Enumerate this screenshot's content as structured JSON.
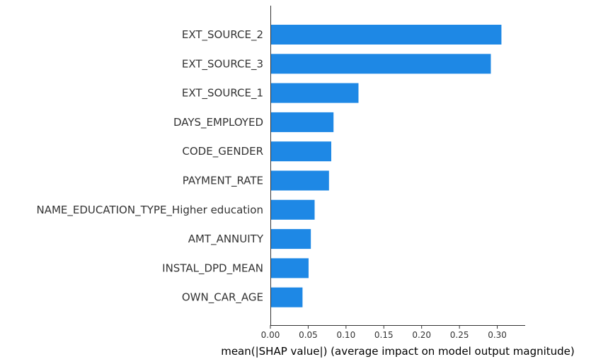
{
  "chart_data": {
    "type": "bar",
    "orientation": "horizontal",
    "categories": [
      "EXT_SOURCE_2",
      "EXT_SOURCE_3",
      "EXT_SOURCE_1",
      "DAYS_EMPLOYED",
      "CODE_GENDER",
      "PAYMENT_RATE",
      "NAME_EDUCATION_TYPE_Higher education",
      "AMT_ANNUITY",
      "INSTAL_DPD_MEAN",
      "OWN_CAR_AGE"
    ],
    "values": [
      0.3055,
      0.2915,
      0.1165,
      0.0835,
      0.0805,
      0.0775,
      0.0585,
      0.0535,
      0.0505,
      0.0425
    ],
    "xlabel": "mean(|SHAP value|) (average impact on model output magnitude)",
    "ylabel": "",
    "title": "",
    "xlim": [
      0,
      0.32
    ],
    "xticks": [
      "0.00",
      "0.05",
      "0.10",
      "0.15",
      "0.20",
      "0.25",
      "0.30"
    ],
    "grid": false,
    "bar_color": "#1e88e5",
    "axis_color": "#333333"
  }
}
